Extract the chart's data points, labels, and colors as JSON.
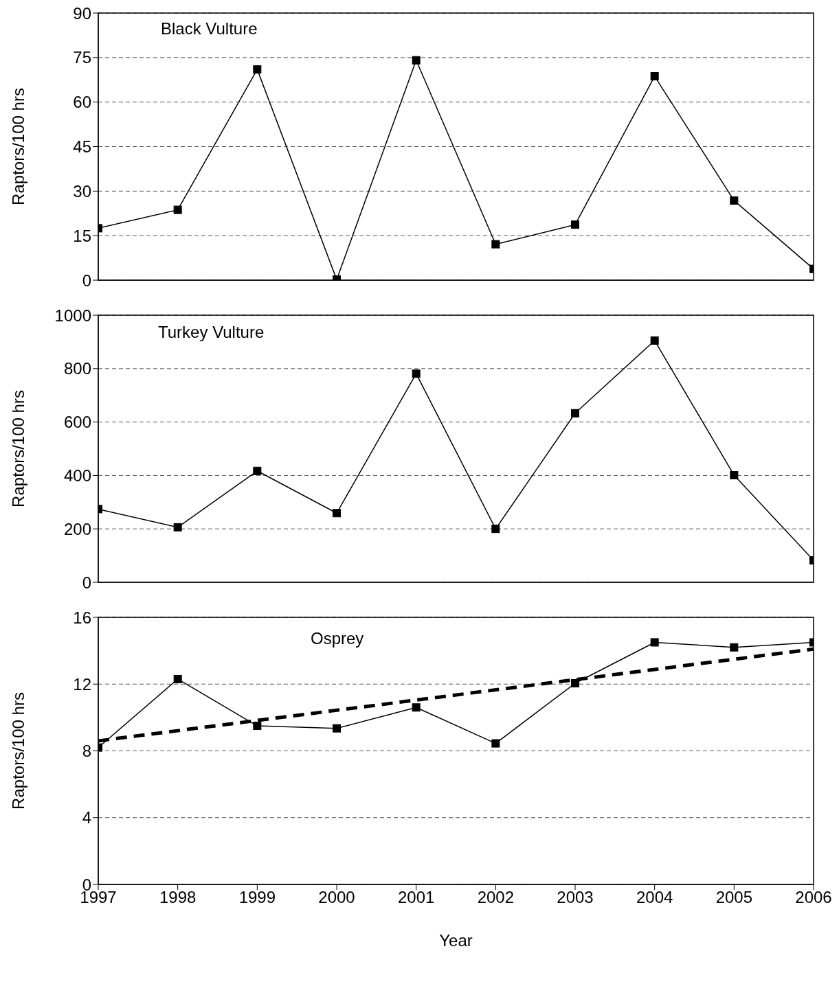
{
  "chart_data": [
    {
      "type": "line",
      "title": "Black Vulture",
      "ylabel": "Raptors/100 hrs",
      "x": [
        1997,
        1998,
        1999,
        2000,
        2001,
        2002,
        2003,
        2004,
        2005,
        2006
      ],
      "xlim": [
        1997,
        2006
      ],
      "xticks": [
        1997,
        1998,
        1999,
        2000,
        2001,
        2002,
        2003,
        2004,
        2005,
        2006
      ],
      "ylim": [
        0,
        90
      ],
      "yticks": [
        0,
        15,
        30,
        45,
        60,
        75,
        90
      ],
      "tick_labels": "y",
      "grid": "y",
      "legend": false,
      "marker": "square",
      "series": [
        {
          "color": "#000000",
          "values": [
            17.5,
            23.7,
            71,
            0.2,
            74.1,
            12.1,
            18.7,
            68.7,
            26.8,
            3.8
          ]
        }
      ]
    },
    {
      "type": "line",
      "title": "Turkey Vulture",
      "ylabel": "Raptors/100 hrs",
      "x": [
        1997,
        1998,
        1999,
        2000,
        2001,
        2002,
        2003,
        2004,
        2005,
        2006
      ],
      "xlim": [
        1997,
        2006
      ],
      "xticks": [
        1997,
        1998,
        1999,
        2000,
        2001,
        2002,
        2003,
        2004,
        2005,
        2006
      ],
      "ylim": [
        0,
        1000
      ],
      "yticks": [
        0,
        200,
        400,
        600,
        800,
        1000
      ],
      "tick_labels": "y",
      "grid": "y",
      "legend": false,
      "marker": "square",
      "series": [
        {
          "color": "#000000",
          "values": [
            274,
            206,
            417,
            259,
            781,
            200,
            633,
            905,
            401,
            82
          ]
        }
      ]
    },
    {
      "type": "line",
      "title": "Osprey",
      "xlabel": "Year",
      "ylabel": "Raptors/100 hrs",
      "x": [
        1997,
        1998,
        1999,
        2000,
        2001,
        2002,
        2003,
        2004,
        2005,
        2006
      ],
      "xlim": [
        1997,
        2006
      ],
      "xticks": [
        1997,
        1998,
        1999,
        2000,
        2001,
        2002,
        2003,
        2004,
        2005,
        2006
      ],
      "ylim": [
        0,
        16
      ],
      "yticks": [
        0,
        4,
        8,
        12,
        16
      ],
      "grid": "y",
      "legend": false,
      "marker": "square",
      "series": [
        {
          "color": "#000000",
          "values": [
            8.2,
            12.3,
            9.5,
            9.35,
            10.6,
            8.45,
            12.05,
            14.5,
            14.2,
            14.5
          ]
        },
        {
          "type": "line",
          "color": "#000000",
          "x": [
            1997,
            2006
          ],
          "values": [
            8.6,
            14.1
          ],
          "marker": "none",
          "line_style": "dashed"
        }
      ]
    }
  ]
}
